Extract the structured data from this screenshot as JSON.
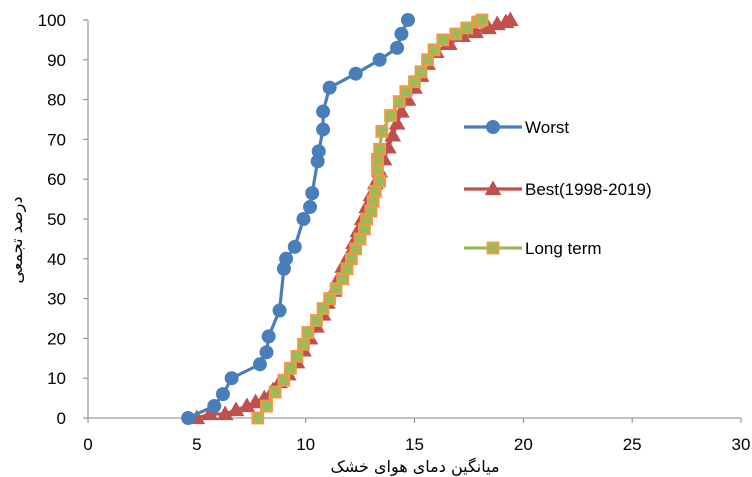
{
  "chart_data": {
    "type": "line",
    "title": "",
    "xlabel": "میانگین دمای هوای خشک",
    "ylabel": "درصد تجمعی",
    "xlim": [
      0,
      30
    ],
    "ylim": [
      0,
      100
    ],
    "x_ticks": [
      0,
      5,
      10,
      15,
      20,
      25,
      30
    ],
    "y_ticks": [
      0,
      10,
      20,
      30,
      40,
      50,
      60,
      70,
      80,
      90,
      100
    ],
    "grid": false,
    "legend_position": "right",
    "series": [
      {
        "name": "Worst",
        "color": "#4a7ebb",
        "marker": "circle",
        "points": [
          [
            4.6,
            0
          ],
          [
            5.8,
            3
          ],
          [
            6.2,
            6
          ],
          [
            6.6,
            10
          ],
          [
            7.9,
            13.5
          ],
          [
            8.2,
            16.5
          ],
          [
            8.3,
            20.5
          ],
          [
            8.8,
            27
          ],
          [
            9.0,
            37.5
          ],
          [
            9.1,
            40
          ],
          [
            9.5,
            43
          ],
          [
            9.9,
            50
          ],
          [
            10.2,
            53
          ],
          [
            10.3,
            56.5
          ],
          [
            10.55,
            64.5
          ],
          [
            10.6,
            67
          ],
          [
            10.8,
            72.5
          ],
          [
            10.8,
            77
          ],
          [
            11.1,
            83
          ],
          [
            12.3,
            86.5
          ],
          [
            13.4,
            90
          ],
          [
            14.2,
            93
          ],
          [
            14.4,
            96.5
          ],
          [
            14.7,
            100
          ]
        ]
      },
      {
        "name": "Best(1998-2019)",
        "color": "#c0504d",
        "marker": "triangle",
        "points": [
          [
            5.0,
            0
          ],
          [
            5.6,
            1
          ],
          [
            6.3,
            1
          ],
          [
            6.8,
            2
          ],
          [
            7.3,
            3
          ],
          [
            7.7,
            4
          ],
          [
            8.1,
            5
          ],
          [
            8.5,
            7
          ],
          [
            8.8,
            9
          ],
          [
            9.2,
            11
          ],
          [
            9.6,
            14
          ],
          [
            9.9,
            17
          ],
          [
            10.2,
            20
          ],
          [
            10.5,
            23
          ],
          [
            10.8,
            26
          ],
          [
            11.0,
            29
          ],
          [
            11.3,
            32
          ],
          [
            11.5,
            35
          ],
          [
            11.7,
            38
          ],
          [
            12.0,
            41
          ],
          [
            12.2,
            44
          ],
          [
            12.4,
            47
          ],
          [
            12.6,
            50
          ],
          [
            12.8,
            53
          ],
          [
            13.0,
            56
          ],
          [
            13.2,
            59
          ],
          [
            13.4,
            62
          ],
          [
            13.6,
            65
          ],
          [
            13.8,
            68
          ],
          [
            14.0,
            71
          ],
          [
            14.2,
            74
          ],
          [
            14.4,
            77
          ],
          [
            14.7,
            80
          ],
          [
            15.0,
            83
          ],
          [
            15.3,
            86
          ],
          [
            15.6,
            89
          ],
          [
            16.0,
            92
          ],
          [
            16.6,
            94
          ],
          [
            17.2,
            96
          ],
          [
            17.8,
            97
          ],
          [
            18.4,
            98
          ],
          [
            18.8,
            99
          ],
          [
            19.2,
            99.5
          ],
          [
            19.4,
            100
          ]
        ]
      },
      {
        "name": "Long term",
        "color": "#9bbb59",
        "edge_color": "#f79646",
        "marker": "square",
        "points": [
          [
            7.8,
            0
          ],
          [
            8.2,
            3
          ],
          [
            8.6,
            6.5
          ],
          [
            9.0,
            9.5
          ],
          [
            9.3,
            12.5
          ],
          [
            9.6,
            15.5
          ],
          [
            9.9,
            18.5
          ],
          [
            10.1,
            21.5
          ],
          [
            10.5,
            24.5
          ],
          [
            10.8,
            27.5
          ],
          [
            11.1,
            30
          ],
          [
            11.4,
            32.5
          ],
          [
            11.7,
            35
          ],
          [
            11.9,
            37.5
          ],
          [
            12.1,
            40
          ],
          [
            12.3,
            42.5
          ],
          [
            12.5,
            45
          ],
          [
            12.7,
            47.5
          ],
          [
            12.8,
            50
          ],
          [
            13.0,
            52
          ],
          [
            13.1,
            54.5
          ],
          [
            13.2,
            57
          ],
          [
            13.4,
            59.5
          ],
          [
            13.3,
            62.5
          ],
          [
            13.3,
            65
          ],
          [
            13.4,
            67.5
          ],
          [
            13.5,
            72
          ],
          [
            13.9,
            76
          ],
          [
            14.3,
            79.5
          ],
          [
            14.6,
            82
          ],
          [
            15.0,
            84.5
          ],
          [
            15.3,
            87
          ],
          [
            15.6,
            90
          ],
          [
            15.9,
            92.5
          ],
          [
            16.3,
            95
          ],
          [
            16.9,
            96.5
          ],
          [
            17.4,
            98
          ],
          [
            17.9,
            99.5
          ],
          [
            18.1,
            100
          ]
        ]
      }
    ]
  }
}
